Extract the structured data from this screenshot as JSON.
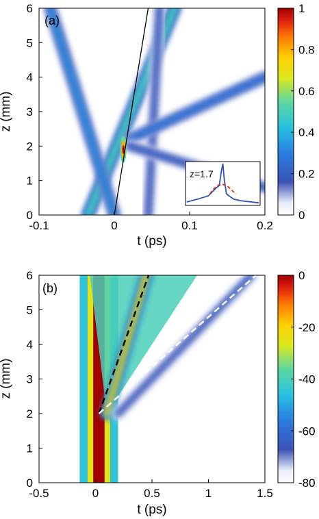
{
  "chart_data": [
    {
      "type": "heatmap",
      "panel_label": "(a)",
      "xlabel": "t (ps)",
      "ylabel": "z (mm)",
      "xlim": [
        -0.1,
        0.2
      ],
      "ylim": [
        0,
        6
      ],
      "xticks": [
        -0.1,
        0,
        0.1,
        0.2
      ],
      "xtick_labels": [
        "-0.1",
        "0",
        "0.1",
        "0.2"
      ],
      "yticks": [
        0,
        1,
        2,
        3,
        4,
        5,
        6
      ],
      "ytick_labels": [
        "0",
        "1",
        "2",
        "3",
        "4",
        "5",
        "6"
      ],
      "colorbar": {
        "range": [
          0,
          1
        ],
        "ticks": [
          0,
          0.2,
          0.4,
          0.6,
          0.8,
          1
        ],
        "tick_labels": [
          "0",
          "0.2",
          "0.4",
          "0.6",
          "0.8",
          "1"
        ],
        "colormap": "jet-white"
      },
      "features": [
        {
          "kind": "band",
          "from": [
            -0.035,
            0
          ],
          "to": [
            0.08,
            6
          ],
          "peak": 0.55
        },
        {
          "kind": "band",
          "from": [
            0.0,
            0
          ],
          "to": [
            -0.085,
            6
          ],
          "peak": 0.35
        },
        {
          "kind": "band",
          "from": [
            0.045,
            0
          ],
          "to": [
            0.06,
            6
          ],
          "peak": 0.2
        },
        {
          "kind": "band",
          "from": [
            0.02,
            2.2
          ],
          "to": [
            0.2,
            4.0
          ],
          "peak": 0.3
        },
        {
          "kind": "band",
          "from": [
            0.02,
            2.0
          ],
          "to": [
            0.2,
            0.8
          ],
          "peak": 0.22
        },
        {
          "kind": "band",
          "from": [
            -0.03,
            0
          ],
          "to": [
            -0.03,
            6
          ],
          "peak": 0.3
        },
        {
          "kind": "peak",
          "at": [
            0.012,
            1.9
          ],
          "value": 1.0
        }
      ],
      "line": {
        "color": "#000000",
        "from": [
          0.0,
          0
        ],
        "to": [
          0.045,
          6
        ]
      },
      "inset": {
        "label": "z=1.7",
        "curves": [
          {
            "color": "#2f4fc0",
            "style": "solid",
            "x": [
              0,
              0.15,
              0.3,
              0.4,
              0.45,
              0.48,
              0.5,
              0.52,
              0.55,
              0.6,
              0.65,
              0.75,
              0.9,
              1
            ],
            "y": [
              0.05,
              0.12,
              0.2,
              0.38,
              0.45,
              0.8,
              0.98,
              0.6,
              0.25,
              0.18,
              0.12,
              0.08,
              0.05,
              0.03
            ]
          },
          {
            "color": "#e03020",
            "style": "dashed",
            "x": [
              0.32,
              0.38,
              0.44,
              0.5,
              0.56,
              0.62,
              0.68
            ],
            "y": [
              0.25,
              0.38,
              0.46,
              0.48,
              0.44,
              0.35,
              0.24
            ]
          }
        ]
      }
    },
    {
      "type": "heatmap",
      "panel_label": "(b)",
      "xlabel": "t (ps)",
      "ylabel": "z (mm)",
      "xlim": [
        -0.5,
        1.5
      ],
      "ylim": [
        0,
        6
      ],
      "xticks": [
        -0.5,
        0,
        0.5,
        1,
        1.5
      ],
      "xtick_labels": [
        "-0.5",
        "0",
        "0.5",
        "1",
        "1.5"
      ],
      "yticks": [
        0,
        1,
        2,
        3,
        4,
        5,
        6
      ],
      "ytick_labels": [
        "0",
        "1",
        "2",
        "3",
        "4",
        "5",
        "6"
      ],
      "colorbar": {
        "range": [
          -80,
          0
        ],
        "ticks": [
          -80,
          -60,
          -40,
          -20,
          0
        ],
        "tick_labels": [
          "-80",
          "-60",
          "-40",
          "-20",
          "0"
        ],
        "colormap": "jet-white"
      },
      "features": [
        {
          "kind": "column",
          "x_center": 0.03,
          "half_width": 0.17,
          "z_range": [
            0,
            6
          ],
          "peak_db": -45
        },
        {
          "kind": "column",
          "x_center": 0.03,
          "half_width": 0.1,
          "z_range": [
            0,
            6
          ],
          "peak_db": -25
        },
        {
          "kind": "column",
          "x_center": 0.03,
          "half_width": 0.05,
          "z_range": [
            0,
            6
          ],
          "peak_db": 0
        },
        {
          "kind": "fan",
          "apex": [
            0.1,
            2.0
          ],
          "left_top": [
            -0.05,
            6
          ],
          "right_top": [
            0.9,
            6
          ],
          "peak_db": -40
        },
        {
          "kind": "band",
          "from": [
            0.1,
            2.0
          ],
          "to": [
            0.45,
            6
          ],
          "peak_db": -15
        },
        {
          "kind": "band",
          "from": [
            0.2,
            2.0
          ],
          "to": [
            1.38,
            6
          ],
          "peak_db": -65
        }
      ],
      "lines": [
        {
          "color": "#000000",
          "style": "dashed",
          "from": [
            0.03,
            2.0
          ],
          "to": [
            0.47,
            6
          ]
        },
        {
          "color": "#ffffff",
          "style": "dashed",
          "from": [
            0.03,
            2.0
          ],
          "to": [
            1.42,
            6
          ]
        }
      ]
    }
  ]
}
